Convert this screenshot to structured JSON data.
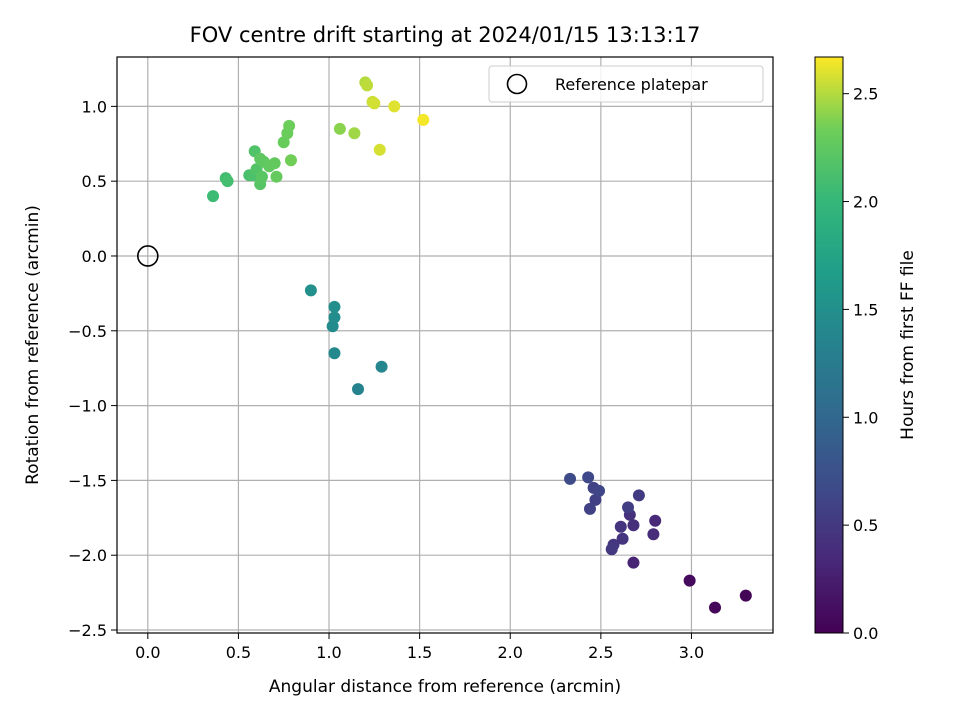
{
  "chart_data": {
    "type": "scatter",
    "title": "FOV centre drift starting at 2024/01/15 13:13:17",
    "xlabel": "Angular distance from reference (arcmin)",
    "ylabel": "Rotation from reference (arcmin)",
    "xlim": [
      -0.17,
      3.45
    ],
    "ylim": [
      -2.52,
      1.33
    ],
    "xticks": [
      0.0,
      0.5,
      1.0,
      1.5,
      2.0,
      2.5,
      3.0
    ],
    "xtick_labels": [
      "0.0",
      "0.5",
      "1.0",
      "1.5",
      "2.0",
      "2.5",
      "3.0"
    ],
    "yticks": [
      -2.5,
      -2.0,
      -1.5,
      -1.0,
      -0.5,
      0.0,
      0.5,
      1.0
    ],
    "ytick_labels": [
      "−2.5",
      "−2.0",
      "−1.5",
      "−1.0",
      "−0.5",
      "0.0",
      "0.5",
      "1.0"
    ],
    "grid": true,
    "legend": {
      "position": "top-right",
      "entries": [
        "Reference platepar"
      ]
    },
    "reference_point": {
      "x": 0.0,
      "y": 0.0,
      "label": "Reference platepar"
    },
    "colorbar": {
      "label": "Hours from first FF file",
      "colormap": "viridis",
      "range": [
        0.0,
        2.67
      ],
      "ticks": [
        0.0,
        0.5,
        1.0,
        1.5,
        2.0,
        2.5
      ],
      "tick_labels": [
        "0.0",
        "0.5",
        "1.0",
        "1.5",
        "2.0",
        "2.5"
      ]
    },
    "points": [
      {
        "x": 3.3,
        "y": -2.27,
        "t": 0.03
      },
      {
        "x": 3.13,
        "y": -2.35,
        "t": 0.05
      },
      {
        "x": 2.99,
        "y": -2.17,
        "t": 0.08
      },
      {
        "x": 2.68,
        "y": -2.05,
        "t": 0.3
      },
      {
        "x": 2.8,
        "y": -1.77,
        "t": 0.35
      },
      {
        "x": 2.79,
        "y": -1.86,
        "t": 0.38
      },
      {
        "x": 2.68,
        "y": -1.8,
        "t": 0.4
      },
      {
        "x": 2.66,
        "y": -1.73,
        "t": 0.42
      },
      {
        "x": 2.61,
        "y": -1.81,
        "t": 0.45
      },
      {
        "x": 2.62,
        "y": -1.89,
        "t": 0.46
      },
      {
        "x": 2.57,
        "y": -1.93,
        "t": 0.48
      },
      {
        "x": 2.56,
        "y": -1.96,
        "t": 0.5
      },
      {
        "x": 2.71,
        "y": -1.6,
        "t": 0.52
      },
      {
        "x": 2.65,
        "y": -1.68,
        "t": 0.55
      },
      {
        "x": 2.47,
        "y": -1.63,
        "t": 0.57
      },
      {
        "x": 2.44,
        "y": -1.69,
        "t": 0.58
      },
      {
        "x": 2.46,
        "y": -1.55,
        "t": 0.6
      },
      {
        "x": 2.49,
        "y": -1.57,
        "t": 0.62
      },
      {
        "x": 2.43,
        "y": -1.48,
        "t": 0.65
      },
      {
        "x": 2.33,
        "y": -1.49,
        "t": 0.68
      },
      {
        "x": 1.16,
        "y": -0.89,
        "t": 1.35
      },
      {
        "x": 1.29,
        "y": -0.74,
        "t": 1.38
      },
      {
        "x": 1.03,
        "y": -0.65,
        "t": 1.42
      },
      {
        "x": 1.02,
        "y": -0.47,
        "t": 1.44
      },
      {
        "x": 1.03,
        "y": -0.41,
        "t": 1.46
      },
      {
        "x": 1.03,
        "y": -0.34,
        "t": 1.48
      },
      {
        "x": 0.9,
        "y": -0.23,
        "t": 1.5
      },
      {
        "x": 0.36,
        "y": 0.4,
        "t": 2.05
      },
      {
        "x": 0.43,
        "y": 0.52,
        "t": 2.08
      },
      {
        "x": 0.44,
        "y": 0.5,
        "t": 2.1
      },
      {
        "x": 0.56,
        "y": 0.54,
        "t": 2.12
      },
      {
        "x": 0.58,
        "y": 0.54,
        "t": 2.14
      },
      {
        "x": 0.59,
        "y": 0.7,
        "t": 2.16
      },
      {
        "x": 0.6,
        "y": 0.58,
        "t": 2.18
      },
      {
        "x": 0.62,
        "y": 0.48,
        "t": 2.2
      },
      {
        "x": 0.63,
        "y": 0.53,
        "t": 2.22
      },
      {
        "x": 0.62,
        "y": 0.65,
        "t": 2.24
      },
      {
        "x": 0.64,
        "y": 0.63,
        "t": 2.25
      },
      {
        "x": 0.67,
        "y": 0.6,
        "t": 2.26
      },
      {
        "x": 0.7,
        "y": 0.62,
        "t": 2.27
      },
      {
        "x": 0.71,
        "y": 0.53,
        "t": 2.28
      },
      {
        "x": 0.75,
        "y": 0.76,
        "t": 2.3
      },
      {
        "x": 0.77,
        "y": 0.82,
        "t": 2.31
      },
      {
        "x": 0.78,
        "y": 0.87,
        "t": 2.32
      },
      {
        "x": 0.79,
        "y": 0.64,
        "t": 2.34
      },
      {
        "x": 1.06,
        "y": 0.85,
        "t": 2.4
      },
      {
        "x": 1.14,
        "y": 0.82,
        "t": 2.45
      },
      {
        "x": 1.2,
        "y": 1.16,
        "t": 2.5
      },
      {
        "x": 1.21,
        "y": 1.14,
        "t": 2.52
      },
      {
        "x": 1.24,
        "y": 1.03,
        "t": 2.55
      },
      {
        "x": 1.25,
        "y": 1.02,
        "t": 2.57
      },
      {
        "x": 1.28,
        "y": 0.71,
        "t": 2.58
      },
      {
        "x": 1.36,
        "y": 1.0,
        "t": 2.6
      },
      {
        "x": 1.52,
        "y": 0.91,
        "t": 2.65
      }
    ]
  }
}
